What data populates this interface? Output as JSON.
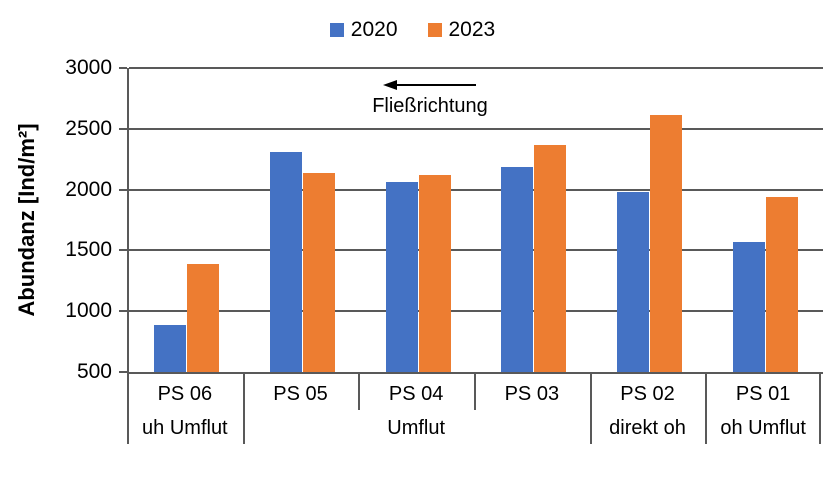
{
  "chart_data": {
    "type": "bar",
    "title": "",
    "ylabel": "Abundanz [Ind/m²]",
    "xlabel": "",
    "ylim": [
      500,
      3000
    ],
    "yticks": [
      500,
      1000,
      1500,
      2000,
      2500,
      3000
    ],
    "grid": true,
    "legend_position": "top",
    "categories": [
      "PS 06",
      "PS 05",
      "PS 04",
      "PS 03",
      "PS 02",
      "PS 01"
    ],
    "groups": [
      {
        "label": "uh Umflut",
        "span": [
          0,
          0
        ]
      },
      {
        "label": "Umflut",
        "span": [
          1,
          3
        ]
      },
      {
        "label": "direkt oh",
        "span": [
          4,
          4
        ]
      },
      {
        "label": "oh Umflut",
        "span": [
          5,
          5
        ]
      }
    ],
    "series": [
      {
        "name": "2020",
        "color": "#4472C4",
        "values": [
          890,
          2310,
          2060,
          2190,
          1980,
          1570
        ]
      },
      {
        "name": "2023",
        "color": "#ED7D31",
        "values": [
          1390,
          2140,
          2120,
          2370,
          2610,
          1940
        ]
      }
    ],
    "annotation": {
      "label": "Fließrichtung",
      "arrow_direction": "left"
    }
  },
  "colors": {
    "grid": "#595959",
    "axis": "#595959",
    "series_2020": "#4472C4",
    "series_2023": "#ED7D31",
    "text": "#000000"
  }
}
